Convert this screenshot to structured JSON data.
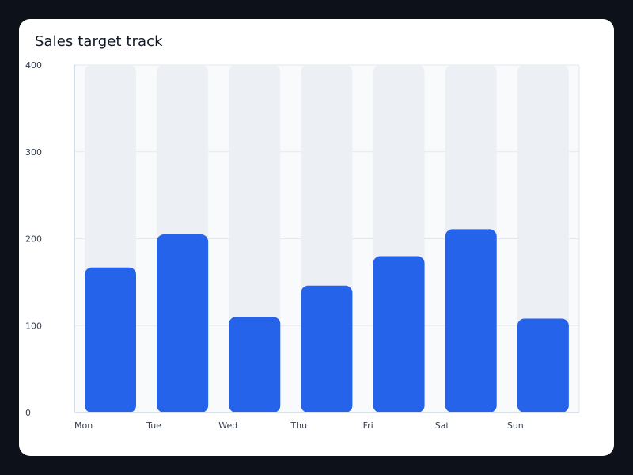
{
  "colors": {
    "page_background": "#0d111a",
    "card_background": "#ffffff",
    "plot_background": "#f8fafc",
    "track": "#eceff3",
    "bar": "#2563eb",
    "axis": "#cbd5e1",
    "grid": "#e5e7eb"
  },
  "chart_data": {
    "type": "bar",
    "title": "Sales target track",
    "xlabel": "",
    "ylabel": "",
    "categories": [
      "Mon",
      "Tue",
      "Wed",
      "Thu",
      "Fri",
      "Sat",
      "Sun"
    ],
    "series": [
      {
        "values": [
          167,
          205,
          110,
          146,
          180,
          211,
          108
        ]
      }
    ],
    "target": 400,
    "ylim": [
      0,
      400
    ],
    "yticks": [
      "0",
      "100",
      "200",
      "300",
      "400"
    ],
    "grid": true,
    "legend": "none"
  }
}
